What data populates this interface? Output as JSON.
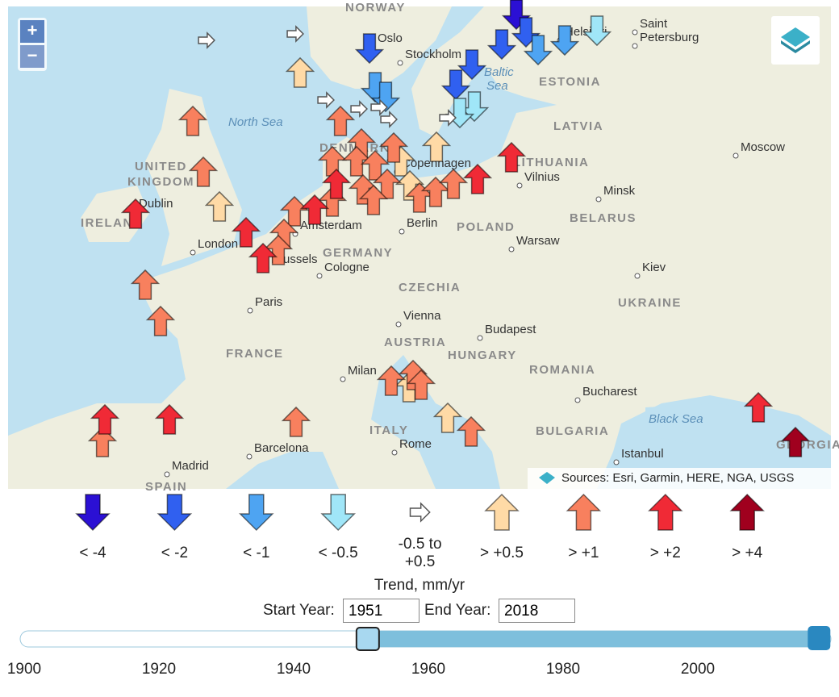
{
  "map": {
    "labels": [
      "NORWAY",
      "Oslo",
      "Stockholm",
      "Helsinki",
      "Saint",
      "Petersburg",
      "Baltic",
      "Sea",
      "ESTONIA",
      "North Sea",
      "LATVIA",
      "DENMARK",
      "UNITED",
      "KINGDOM",
      "Copenhagen",
      "LITHUANIA",
      "Vilnius",
      "Moscow",
      "Dublin",
      "IRELAND",
      "Minsk",
      "BELARUS",
      "Amsterdam",
      "Berlin",
      "POLAND",
      "Warsaw",
      "London",
      "GERMANY",
      "Brussels",
      "Cologne",
      "Kiev",
      "CZECHIA",
      "UKRAINE",
      "Paris",
      "Vienna",
      "Budapest",
      "FRANCE",
      "AUSTRIA",
      "HUNGARY",
      "ROMANIA",
      "Milan",
      "Bucharest",
      "Black Sea",
      "ITALY",
      "BULGARIA",
      "Barcelona",
      "Rome",
      "Istanbul",
      "Madrid",
      "SPAIN",
      "GEORGIA"
    ],
    "attribution": "Sources: Esri, Garmin, HERE, NGA, USGS",
    "zoom_in": "+",
    "zoom_out": "−"
  },
  "legend": {
    "title": "Trend, mm/yr",
    "items": [
      {
        "label": "< -4",
        "color": "#2b10d4"
      },
      {
        "label": "< -2",
        "color": "#3060f0"
      },
      {
        "label": "< -1",
        "color": "#4ea4f2"
      },
      {
        "label": "< -0.5",
        "color": "#a0e6f8"
      },
      {
        "label": "-0.5 to +0.5",
        "color": "#ffffff"
      },
      {
        "label": "> +0.5",
        "color": "#ffdaa6"
      },
      {
        "label": "> +1",
        "color": "#f8805e"
      },
      {
        "label": "> +2",
        "color": "#f02a36"
      },
      {
        "label": "> +4",
        "color": "#a0001e"
      }
    ]
  },
  "controls": {
    "start_label": "Start Year:",
    "start_value": 1951,
    "end_label": "End Year:",
    "end_value": 2018
  },
  "slider": {
    "range": [
      1900,
      2020
    ],
    "ticks": [
      1900,
      1920,
      1940,
      1960,
      1980,
      2000
    ]
  }
}
